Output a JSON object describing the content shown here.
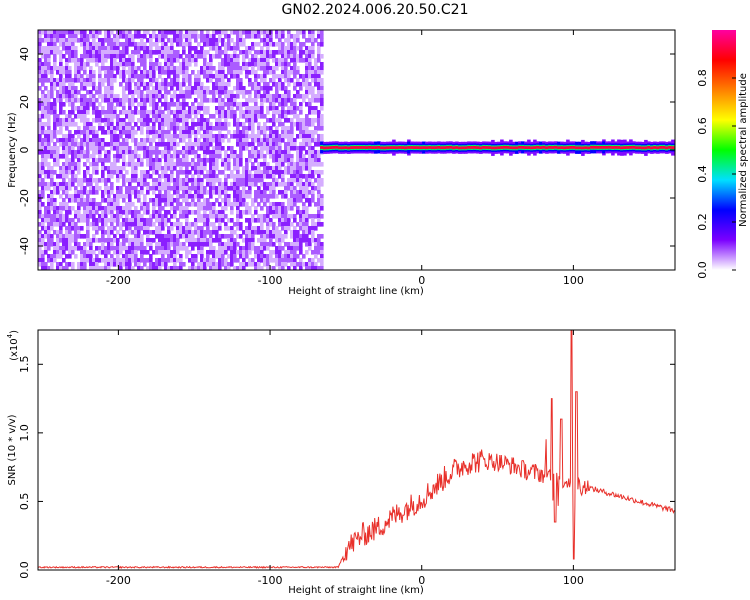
{
  "title": "GN02.2024.006.20.50.C21",
  "chart_data": [
    {
      "type": "heatmap",
      "xlabel": "Height of straight line (km)",
      "ylabel": "Frequency (Hz)",
      "xlim": [
        -253,
        167
      ],
      "ylim": [
        -50,
        50
      ],
      "x_ticks": [
        -200,
        -100,
        0,
        100
      ],
      "x_tick_labels": [
        "-200",
        "-100",
        "0",
        "100"
      ],
      "y_ticks": [
        -40,
        -20,
        0,
        20,
        40
      ],
      "y_tick_labels": [
        "-40",
        "-20",
        "0",
        "20",
        "40"
      ],
      "noise_region_x": [
        -253,
        -67
      ],
      "signal_line": {
        "x_start": -67,
        "x_end": 167,
        "frequency": 1
      },
      "colorbar": {
        "label": "Normalized spectral amplitude",
        "range": [
          0,
          1
        ],
        "ticks": [
          0.0,
          0.2,
          0.4,
          0.6,
          0.8
        ],
        "tick_labels": [
          "0.0",
          "0.2",
          "0.4",
          "0.6",
          "0.8"
        ],
        "colors": [
          "#ffffff",
          "#7b00ff",
          "#0000ff",
          "#00e0ff",
          "#00ff00",
          "#ffff00",
          "#ff8000",
          "#ff0000",
          "#ff00a0"
        ]
      },
      "grid": false
    },
    {
      "type": "line",
      "xlabel": "Height of straight line (km)",
      "ylabel": "SNR (10 * v/v)",
      "y_multiplier_label": "(x10",
      "y_multiplier_exp": "4",
      "y_multiplier_close": ")",
      "xlim": [
        -253,
        167
      ],
      "ylim": [
        0,
        1.75
      ],
      "x_ticks": [
        -200,
        -100,
        0,
        100
      ],
      "x_tick_labels": [
        "-200",
        "-100",
        "0",
        "100"
      ],
      "y_ticks": [
        0.0,
        0.5,
        1.0,
        1.5
      ],
      "y_tick_labels": [
        "0.0",
        "0.5",
        "1.0",
        "1.5"
      ],
      "color": "#e8302a",
      "series_points": [
        {
          "x": -253,
          "y": 0.02
        },
        {
          "x": -150,
          "y": 0.02
        },
        {
          "x": -55,
          "y": 0.02
        },
        {
          "x": -50,
          "y": 0.15
        },
        {
          "x": -40,
          "y": 0.25
        },
        {
          "x": -30,
          "y": 0.3
        },
        {
          "x": -20,
          "y": 0.38
        },
        {
          "x": -10,
          "y": 0.45
        },
        {
          "x": 0,
          "y": 0.52
        },
        {
          "x": 10,
          "y": 0.62
        },
        {
          "x": 20,
          "y": 0.72
        },
        {
          "x": 30,
          "y": 0.78
        },
        {
          "x": 40,
          "y": 0.8
        },
        {
          "x": 50,
          "y": 0.79
        },
        {
          "x": 60,
          "y": 0.76
        },
        {
          "x": 70,
          "y": 0.72
        },
        {
          "x": 80,
          "y": 0.7
        },
        {
          "x": 90,
          "y": 0.68
        },
        {
          "x": 100,
          "y": 0.63
        },
        {
          "x": 110,
          "y": 0.6
        },
        {
          "x": 120,
          "y": 0.57
        },
        {
          "x": 130,
          "y": 0.54
        },
        {
          "x": 140,
          "y": 0.51
        },
        {
          "x": 150,
          "y": 0.48
        },
        {
          "x": 160,
          "y": 0.45
        },
        {
          "x": 167,
          "y": 0.43
        }
      ],
      "spikes": [
        {
          "x": 86,
          "y": 1.25
        },
        {
          "x": 88,
          "y": 0.35
        },
        {
          "x": 92,
          "y": 1.1
        },
        {
          "x": 99,
          "y": 1.75
        },
        {
          "x": 100,
          "y": 0.08
        },
        {
          "x": 102,
          "y": 1.3
        }
      ],
      "grid": false
    }
  ]
}
